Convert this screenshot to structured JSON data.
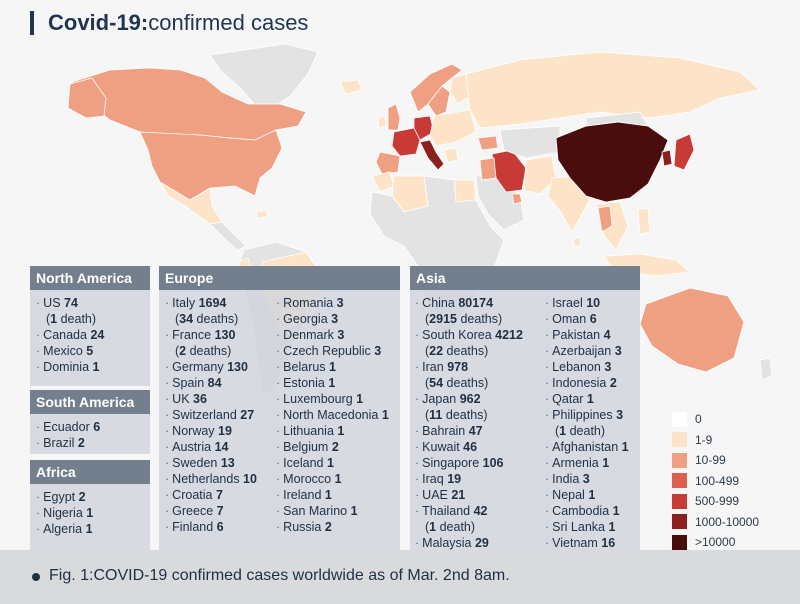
{
  "title": {
    "bold": "Covid-19:",
    "rest": "confirmed cases"
  },
  "colors": {
    "c0": "#ffffff",
    "c1": "#fde4c8",
    "c2": "#ef9f82",
    "c3": "#dc6050",
    "c4": "#c83a35",
    "c5": "#8e1f1f",
    "c6": "#4a0d0d",
    "noData": "#e3e3e3"
  },
  "regions": {
    "north_america": {
      "heading": "North America",
      "entries": [
        {
          "name": "US",
          "count": "74",
          "deaths_num": "1",
          "deaths_word": "death"
        },
        {
          "name": "Canada",
          "count": "24"
        },
        {
          "name": "Mexico",
          "count": "5"
        },
        {
          "name": "Dominia",
          "count": "1"
        }
      ]
    },
    "south_america": {
      "heading": "South America",
      "entries": [
        {
          "name": "Ecuador",
          "count": "6"
        },
        {
          "name": "Brazil",
          "count": "2"
        }
      ]
    },
    "africa": {
      "heading": "Africa",
      "entries": [
        {
          "name": "Egypt",
          "count": "2"
        },
        {
          "name": "Nigeria",
          "count": "1"
        },
        {
          "name": "Algeria",
          "count": "1"
        }
      ]
    },
    "europe": {
      "heading": "Europe",
      "col1": [
        {
          "name": "Italy",
          "count": "1694",
          "deaths_num": "34",
          "deaths_word": "deaths"
        },
        {
          "name": "France",
          "count": "130",
          "deaths_num": "2",
          "deaths_word": "deaths"
        },
        {
          "name": "Germany",
          "count": "130"
        },
        {
          "name": "Spain",
          "count": "84"
        },
        {
          "name": "UK",
          "count": "36"
        },
        {
          "name": "Switzerland",
          "count": "27"
        },
        {
          "name": "Norway",
          "count": "19"
        },
        {
          "name": "Austria",
          "count": "14"
        },
        {
          "name": "Sweden",
          "count": "13"
        },
        {
          "name": "Netherlands",
          "count": "10"
        },
        {
          "name": "Croatia",
          "count": "7"
        },
        {
          "name": "Greece",
          "count": "7"
        },
        {
          "name": "Finland",
          "count": "6"
        }
      ],
      "col2": [
        {
          "name": "Romania",
          "count": "3"
        },
        {
          "name": "Georgia",
          "count": "3"
        },
        {
          "name": "Denmark",
          "count": "3"
        },
        {
          "name": "Czech Republic",
          "count": "3"
        },
        {
          "name": "Belarus",
          "count": "1"
        },
        {
          "name": "Estonia",
          "count": "1"
        },
        {
          "name": "Luxembourg",
          "count": "1"
        },
        {
          "name": "North Macedonia",
          "count": "1"
        },
        {
          "name": "Lithuania",
          "count": "1"
        },
        {
          "name": "Belgium",
          "count": "2"
        },
        {
          "name": "Iceland",
          "count": "1"
        },
        {
          "name": "Morocco",
          "count": "1"
        },
        {
          "name": "Ireland",
          "count": "1"
        },
        {
          "name": "San Marino",
          "count": "1"
        },
        {
          "name": "Russia",
          "count": "2"
        }
      ]
    },
    "asia": {
      "heading": "Asia",
      "col1": [
        {
          "name": "China",
          "count": "80174",
          "deaths_num": "2915",
          "deaths_word": "deaths"
        },
        {
          "name": "South Korea",
          "count": "4212",
          "deaths_num": "22",
          "deaths_word": "deaths"
        },
        {
          "name": "Iran",
          "count": "978",
          "deaths_num": "54",
          "deaths_word": "deaths"
        },
        {
          "name": "Japan",
          "count": "962",
          "deaths_num": "11",
          "deaths_word": "deaths"
        },
        {
          "name": "Bahrain",
          "count": "47"
        },
        {
          "name": "Kuwait",
          "count": "46"
        },
        {
          "name": "Singapore",
          "count": "106"
        },
        {
          "name": "Iraq",
          "count": "19"
        },
        {
          "name": "UAE",
          "count": "21"
        },
        {
          "name": "Thailand",
          "count": "42",
          "deaths_num": "1",
          "deaths_word": "death"
        },
        {
          "name": "Malaysia",
          "count": "29"
        }
      ],
      "col2": [
        {
          "name": "Israel",
          "count": "10"
        },
        {
          "name": "Oman",
          "count": "6"
        },
        {
          "name": "Pakistan",
          "count": "4"
        },
        {
          "name": "Azerbaijan",
          "count": "3"
        },
        {
          "name": "Lebanon",
          "count": "3"
        },
        {
          "name": "Indonesia",
          "count": "2"
        },
        {
          "name": "Qatar",
          "count": "1"
        },
        {
          "name": "Philippines",
          "count": "3",
          "deaths_num": "1",
          "deaths_word": "death"
        },
        {
          "name": "Afghanistan",
          "count": "1"
        },
        {
          "name": "Armenia",
          "count": "1"
        },
        {
          "name": "India",
          "count": "3"
        },
        {
          "name": "Nepal",
          "count": "1"
        },
        {
          "name": "Cambodia",
          "count": "1"
        },
        {
          "name": "Sri Lanka",
          "count": "1"
        },
        {
          "name": "Vietnam",
          "count": "16"
        }
      ]
    }
  },
  "legend": [
    {
      "label": "0",
      "color": "#ffffff"
    },
    {
      "label": "1-9",
      "color": "#fde4c8"
    },
    {
      "label": "10-99",
      "color": "#ef9f82"
    },
    {
      "label": "100-499",
      "color": "#dc6050"
    },
    {
      "label": "500-999",
      "color": "#c83a35"
    },
    {
      "label": "1000-10000",
      "color": "#8e1f1f"
    },
    {
      "label": ">10000",
      "color": "#4a0d0d"
    }
  ],
  "footer": {
    "caption": "Fig. 1:COVID-19 confirmed cases worldwide as of Mar. 2nd 8am."
  }
}
